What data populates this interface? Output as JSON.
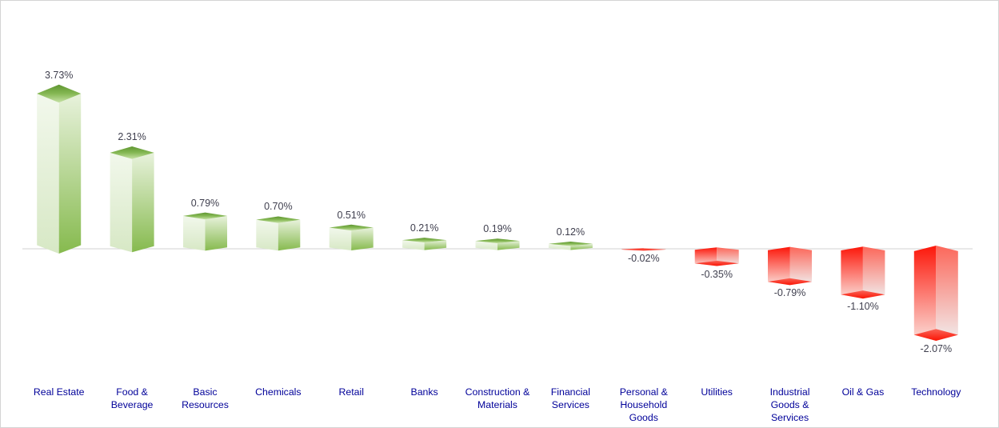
{
  "chart_data": {
    "type": "bar",
    "title": "",
    "xlabel": "",
    "ylabel": "",
    "unit": "%",
    "grid": false,
    "legend": "none",
    "bar_style": "3d-prism-gradient",
    "ylim": [
      -2.6,
      4.3
    ],
    "categories": [
      "Real Estate",
      "Food & Beverage",
      "Basic Resources",
      "Chemicals",
      "Retail",
      "Banks",
      "Construction & Materials",
      "Financial Services",
      "Personal & Household Goods",
      "Utilities",
      "Industrial Goods & Services",
      "Oil & Gas",
      "Technology"
    ],
    "category_label_lines": [
      [
        "Real Estate"
      ],
      [
        "Food &",
        "Beverage"
      ],
      [
        "Basic",
        "Resources"
      ],
      [
        "Chemicals"
      ],
      [
        "Retail"
      ],
      [
        "Banks"
      ],
      [
        "Construction &",
        "Materials"
      ],
      [
        "Financial",
        "Services"
      ],
      [
        "Personal &",
        "Household",
        "Goods"
      ],
      [
        "Utilities"
      ],
      [
        "Industrial",
        "Goods &",
        "Services"
      ],
      [
        "Oil & Gas"
      ],
      [
        "Technology"
      ]
    ],
    "values": [
      3.73,
      2.31,
      0.79,
      0.7,
      0.51,
      0.21,
      0.19,
      0.12,
      -0.02,
      -0.35,
      -0.79,
      -1.1,
      -2.07
    ],
    "value_labels": [
      "3.73%",
      "2.31%",
      "0.79%",
      "0.70%",
      "0.51%",
      "0.21%",
      "0.19%",
      "0.12%",
      "-0.02%",
      "-0.35%",
      "-0.79%",
      "-1.10%",
      "-2.07%"
    ],
    "colors": {
      "positive_top_gradient": [
        "#5f9630",
        "#85b854",
        "#c7e2a6"
      ],
      "positive_left_gradient": [
        "#f2f8ec",
        "#d7e8c5"
      ],
      "positive_right_gradient": [
        "#e8f2dc",
        "#86ba4e"
      ],
      "negative_left_gradient": [
        "#fc170a",
        "#fbddd8"
      ],
      "negative_right_gradient": [
        "#fc675a",
        "#f1eded"
      ],
      "negative_bottom_gradient": [
        "#f96457",
        "#fb1404"
      ],
      "axis_line": "#d9d9d9",
      "value_label": "#3f3f4e",
      "category_label": "#000099",
      "background": "#ffffff",
      "border": "#d4d4d4"
    }
  }
}
